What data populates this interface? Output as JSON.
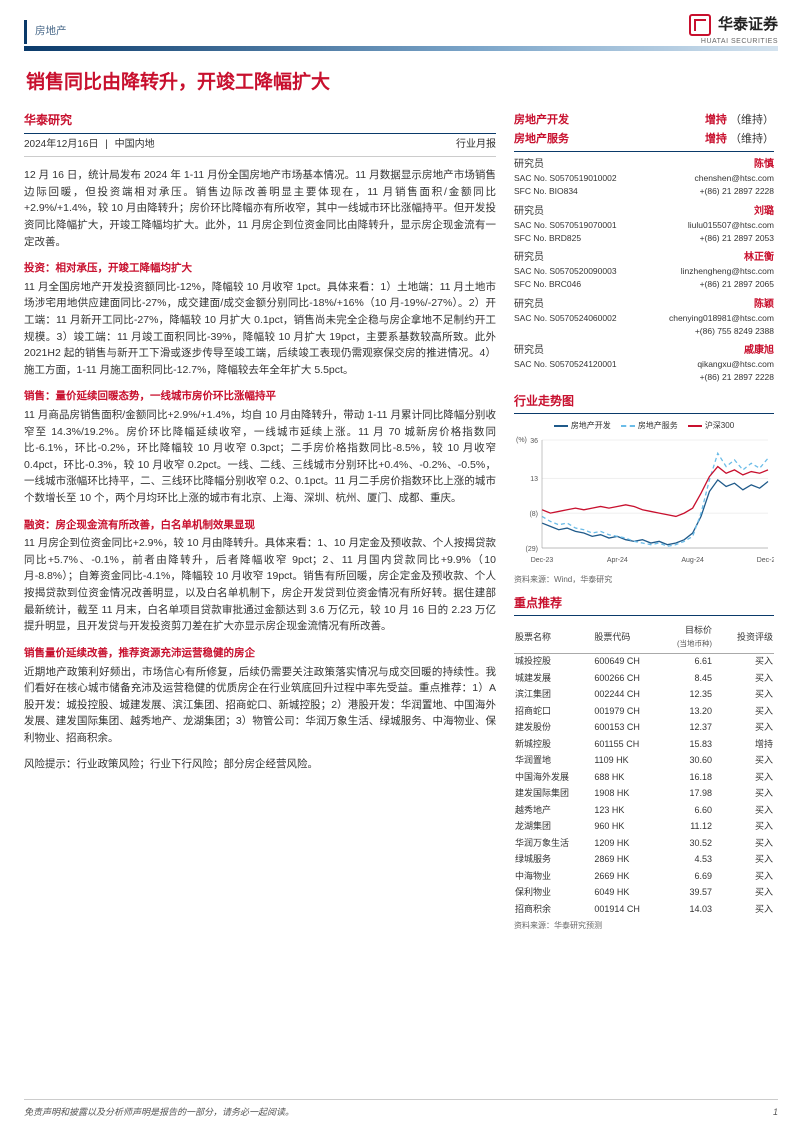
{
  "category": "房地产",
  "brand": {
    "name": "华泰证券",
    "sub": "HUATAI SECURITIES"
  },
  "title": "销售同比由降转升，开竣工降幅扩大",
  "subhead": "华泰研究",
  "meta": {
    "date": "2024年12月16日",
    "region": "中国内地",
    "type": "行业月报"
  },
  "body": {
    "intro": "12 月 16 日，统计局发布 2024 年 1-11 月份全国房地产市场基本情况。11 月数据显示房地产市场销售边际回暖，但投资端相对承压。销售边际改善明显主要体现在，11 月销售面积/金额同比+2.9%/+1.4%，较 10 月由降转升；房价环比降幅亦有所收窄，其中一线城市环比涨幅持平。但开发投资同比降幅扩大，开竣工降幅均扩大。此外，11 月房企到位资金同比由降转升，显示房企现金流有一定改善。",
    "sections": [
      {
        "head": "投资：相对承压，开竣工降幅均扩大",
        "color": "#c8102e",
        "text": "11 月全国房地产开发投资额同比-12%，降幅较 10 月收窄 1pct。具体来看：1）土地端：11 月土地市场涉宅用地供应建面同比-27%，成交建面/成交金额分别同比-18%/+16%（10 月-19%/-27%）。2）开工端：11 月新开工同比-27%，降幅较 10 月扩大 0.1pct，销售尚未完全企稳与房企拿地不足制约开工规模。3）竣工端：11 月竣工面积同比-39%，降幅较 10 月扩大 19pct，主要系基数较高所致。此外 2021H2 起的销售与新开工下滑或逐步传导至竣工端，后续竣工表现仍需观察保交房的推进情况。4）施工方面，1-11 月施工面积同比-12.7%，降幅较去年全年扩大 5.5pct。"
      },
      {
        "head": "销售：量价延续回暖态势，一线城市房价环比涨幅持平",
        "color": "#c8102e",
        "text": "11 月商品房销售面积/金额同比+2.9%/+1.4%，均自 10 月由降转升，带动 1-11 月累计同比降幅分别收窄至 14.3%/19.2%。房价环比降幅延续收窄，一线城市延续上涨。11 月 70 城新房价格指数同比-6.1%，环比-0.2%，环比降幅较 10 月收窄 0.3pct；二手房价格指数同比-8.5%，较 10 月收窄 0.4pct，环比-0.3%，较 10 月收窄 0.2pct。一线、二线、三线城市分别环比+0.4%、-0.2%、-0.5%，一线城市涨幅环比持平，二、三线环比降幅分别收窄 0.2、0.1pct。11 月二手房价指数环比上涨的城市个数增长至 10 个，两个月均环比上涨的城市有北京、上海、深圳、杭州、厦门、成都、重庆。"
      },
      {
        "head": "融资：房企现金流有所改善，白名单机制效果显现",
        "color": "#c8102e",
        "text": "11 月房企到位资金同比+2.9%，较 10 月由降转升。具体来看：1、10 月定金及预收款、个人按揭贷款同比+5.7%、-0.1%，前者由降转升，后者降幅收窄 9pct；2、11 月国内贷款同比+9.9%（10 月-8.8%）；自筹资金同比-4.1%，降幅较 10 月收窄 19pct。销售有所回暖，房企定金及预收款、个人按揭贷款到位资金情况改善明显，以及白名单机制下，房企开发贷到位资金情况有所好转。据住建部最新统计，截至 11 月末，白名单项目贷款审批通过金额达到 3.6 万亿元，较 10 月 16 日的 2.23 万亿提升明显，且开发贷与开发投资剪刀差在扩大亦显示房企现金流情况有所改善。"
      },
      {
        "head": "销售量价延续改善，推荐资源充沛运营稳健的房企",
        "color": "#c8102e",
        "text": "近期地产政策利好频出，市场信心有所修复，后续仍需要关注政策落实情况与成交回暖的持续性。我们看好在核心城市储备充沛及运营稳健的优质房企在行业筑底回升过程中率先受益。重点推荐：1）A 股开发：城投控股、城建发展、滨江集团、招商蛇口、新城控股；2）港股开发：华润置地、中国海外发展、建发国际集团、越秀地产、龙湖集团；3）物管公司：华润万象生活、绿城服务、中海物业、保利物业、招商积余。"
      }
    ],
    "risk": "风险提示：行业政策风险；行业下行风险；部分房企经营风险。"
  },
  "ratings": [
    {
      "name": "房地产开发",
      "rating": "增持",
      "note": "（维持）"
    },
    {
      "name": "房地产服务",
      "rating": "增持",
      "note": "（维持）"
    }
  ],
  "analysts": [
    {
      "role": "研究员",
      "name": "陈慎",
      "lines": [
        [
          "SAC No. S0570519010002",
          "chenshen@htsc.com"
        ],
        [
          "SFC No. BIO834",
          "+(86) 21 2897 2228"
        ]
      ]
    },
    {
      "role": "研究员",
      "name": "刘璐",
      "lines": [
        [
          "SAC No. S0570519070001",
          "liulu015507@htsc.com"
        ],
        [
          "SFC No. BRD825",
          "+(86) 21 2897 2053"
        ]
      ]
    },
    {
      "role": "研究员",
      "name": "林正衡",
      "lines": [
        [
          "SAC No. S0570520090003",
          "linzhengheng@htsc.com"
        ],
        [
          "SFC No. BRC046",
          "+(86) 21 2897 2065"
        ]
      ]
    },
    {
      "role": "研究员",
      "name": "陈颖",
      "lines": [
        [
          "SAC No. S0570524060002",
          "chenying018981@htsc.com"
        ],
        [
          "",
          "+(86) 755 8249 2388"
        ]
      ]
    },
    {
      "role": "研究员",
      "name": "戚康旭",
      "lines": [
        [
          "SAC No. S0570524120001",
          "qikangxu@htsc.com"
        ],
        [
          "",
          "+(86) 21 2897 2228"
        ]
      ]
    }
  ],
  "chart": {
    "title": "行业走势图",
    "legend": [
      {
        "label": "房地产开发",
        "color": "#1f5a8a",
        "dash": "0"
      },
      {
        "label": "房地产服务",
        "color": "#6bbce8",
        "dash": "4 3"
      },
      {
        "label": "沪深300",
        "color": "#c8102e",
        "dash": "0"
      }
    ],
    "y_ticks": [
      "36",
      "13",
      "(8)",
      "(29)"
    ],
    "x_ticks": [
      "Dec-23",
      "Apr-24",
      "Aug-24",
      "Dec-24"
    ],
    "unit": "(%)",
    "series": {
      "dev": [
        -14,
        -16,
        -18,
        -17,
        -19,
        -20,
        -22,
        -21,
        -23,
        -22,
        -24,
        -25,
        -24,
        -26,
        -25,
        -27,
        -26,
        -24,
        -20,
        -10,
        5,
        12,
        8,
        10,
        6,
        9,
        7,
        11
      ],
      "svc": [
        -10,
        -13,
        -15,
        -14,
        -17,
        -18,
        -20,
        -19,
        -21,
        -22,
        -23,
        -25,
        -26,
        -27,
        -26,
        -28,
        -27,
        -25,
        -22,
        -8,
        12,
        28,
        20,
        24,
        18,
        22,
        19,
        25
      ],
      "csi": [
        -6,
        -8,
        -7,
        -6,
        -5,
        -6,
        -5,
        -4,
        -5,
        -4,
        -3,
        -4,
        -6,
        -7,
        -8,
        -9,
        -10,
        -8,
        -5,
        4,
        14,
        20,
        16,
        18,
        15,
        17,
        16,
        18
      ]
    },
    "source": "资料来源：Wind，华泰研究"
  },
  "rec": {
    "title": "重点推荐",
    "headers": [
      "股票名称",
      "股票代码",
      "目标价",
      "投资评级"
    ],
    "header_note": "(当地币种)",
    "rows": [
      [
        "城投控股",
        "600649 CH",
        "6.61",
        "买入"
      ],
      [
        "城建发展",
        "600266 CH",
        "8.45",
        "买入"
      ],
      [
        "滨江集团",
        "002244 CH",
        "12.35",
        "买入"
      ],
      [
        "招商蛇口",
        "001979 CH",
        "13.20",
        "买入"
      ],
      [
        "建发股份",
        "600153 CH",
        "12.37",
        "买入"
      ],
      [
        "新城控股",
        "601155 CH",
        "15.83",
        "增持"
      ],
      [
        "华润置地",
        "1109 HK",
        "30.60",
        "买入"
      ],
      [
        "中国海外发展",
        "688 HK",
        "16.18",
        "买入"
      ],
      [
        "建发国际集团",
        "1908 HK",
        "17.98",
        "买入"
      ],
      [
        "越秀地产",
        "123 HK",
        "6.60",
        "买入"
      ],
      [
        "龙湖集团",
        "960 HK",
        "11.12",
        "买入"
      ],
      [
        "华润万象生活",
        "1209 HK",
        "30.52",
        "买入"
      ],
      [
        "绿城服务",
        "2869 HK",
        "4.53",
        "买入"
      ],
      [
        "中海物业",
        "2669 HK",
        "6.69",
        "买入"
      ],
      [
        "保利物业",
        "6049 HK",
        "39.57",
        "买入"
      ],
      [
        "招商积余",
        "001914 CH",
        "14.03",
        "买入"
      ]
    ],
    "source": "资料来源：华泰研究预测"
  },
  "footer": {
    "disclaimer": "免责声明和披露以及分析师声明是报告的一部分，请务必一起阅读。",
    "page": "1"
  }
}
